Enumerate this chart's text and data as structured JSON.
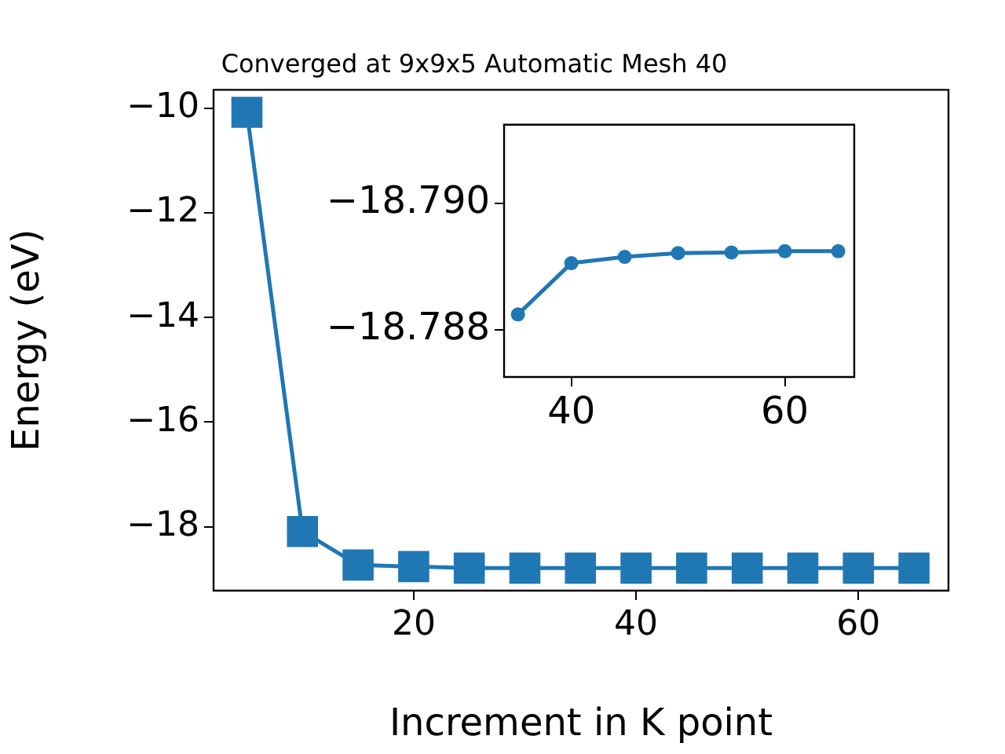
{
  "chart_data": [
    {
      "type": "line",
      "title": "Converged at 9x9x5 Automatic Mesh 40",
      "xlabel": "Increment in K point",
      "ylabel": "Energy (eV)",
      "x": [
        5,
        10,
        15,
        20,
        25,
        30,
        35,
        40,
        45,
        50,
        55,
        60,
        65
      ],
      "series": [
        {
          "color": "#1f77b4",
          "values": [
            -10.08,
            -18.09,
            -18.73,
            -18.76,
            -18.79,
            -18.79,
            -18.79,
            -18.79,
            -18.79,
            -18.79,
            -18.79,
            -18.79,
            -18.79
          ]
        }
      ],
      "xlim": [
        2,
        68.1
      ],
      "xticks": [
        20,
        40,
        60
      ],
      "ylim": [
        -19.22,
        -9.65
      ],
      "yticks": [
        {
          "value": -10,
          "label": "−10"
        },
        {
          "value": -12,
          "label": "−12"
        },
        {
          "value": -14,
          "label": "−14"
        },
        {
          "value": -16,
          "label": "−16"
        },
        {
          "value": -18,
          "label": "−18"
        }
      ],
      "marker": "square",
      "line_style": "solid",
      "grid": false,
      "legend": false
    },
    {
      "type": "line",
      "x": [
        35,
        40,
        45,
        50,
        55,
        60,
        65
      ],
      "series": [
        {
          "color": "#1f77b4",
          "values": [
            -18.78824,
            -18.78905,
            -18.78915,
            -18.78921,
            -18.78922,
            -18.78924,
            -18.78924
          ]
        }
      ],
      "xlim": [
        33.7,
        66.5
      ],
      "xticks": [
        40,
        60
      ],
      "ylim": [
        -18.78725,
        -18.79124
      ],
      "yticks": [
        {
          "value": -18.79,
          "label": "−18.790"
        },
        {
          "value": -18.788,
          "label": "−18.788"
        }
      ],
      "marker": "circle",
      "line_style": "solid",
      "grid": false,
      "legend": false
    }
  ]
}
